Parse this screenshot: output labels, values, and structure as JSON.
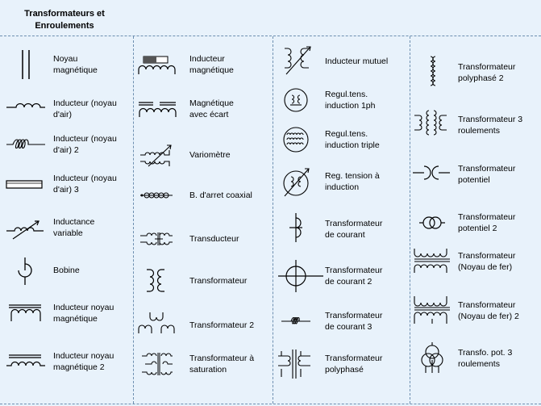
{
  "title": "Transformateurs et\nEnroulements",
  "columns": [
    {
      "items": [
        {
          "label": "Noyau\nmagnétique",
          "icon": "magnetic-core-icon"
        },
        {
          "label": "Inducteur (noyau\nd'air)",
          "icon": "air-core-inductor-icon"
        },
        {
          "label": "Inducteur (noyau\nd'air) 2",
          "icon": "air-core-inductor-2-icon"
        },
        {
          "label": "Inducteur (noyau\nd'air) 3",
          "icon": "air-core-inductor-3-icon"
        },
        {
          "label": "Inductance\nvariable",
          "icon": "variable-inductance-icon"
        },
        {
          "label": "Bobine",
          "icon": "coil-icon"
        },
        {
          "label": "Inducteur noyau\nmagnétique",
          "icon": "magnetic-core-inductor-icon"
        },
        {
          "label": "Inducteur noyau\nmagnétique 2",
          "icon": "magnetic-core-inductor-2-icon"
        }
      ]
    },
    {
      "items": [
        {
          "label": "Inducteur\nmagnétique",
          "icon": "magnetic-inductor-icon"
        },
        {
          "label": "Magnétique\navec écart",
          "icon": "magnetic-gap-icon"
        },
        {
          "label": "Variomètre",
          "icon": "variometer-icon"
        },
        {
          "label": "B. d'arret coaxial",
          "icon": "coaxial-choke-icon"
        },
        {
          "label": "Transducteur",
          "icon": "transducer-icon"
        },
        {
          "label": "Transformateur",
          "icon": "transformer-icon"
        },
        {
          "label": "Transformateur 2",
          "icon": "transformer-2-icon"
        },
        {
          "label": "Transformateur à\nsaturation",
          "icon": "saturable-transformer-icon"
        }
      ]
    },
    {
      "items": [
        {
          "label": "Inducteur mutuel",
          "icon": "mutual-inductor-icon"
        },
        {
          "label": "Regul.tens.\ninduction 1ph",
          "icon": "induction-regulator-1ph-icon"
        },
        {
          "label": "Regul.tens.\ninduction triple",
          "icon": "induction-regulator-triple-icon"
        },
        {
          "label": "Reg. tension à\ninduction",
          "icon": "induction-voltage-regulator-icon"
        },
        {
          "label": "Transformateur\nde courant",
          "icon": "current-transformer-icon"
        },
        {
          "label": "Transformateur\nde courant 2",
          "icon": "current-transformer-2-icon"
        },
        {
          "label": "Transformateur\nde courant 3",
          "icon": "current-transformer-3-icon"
        },
        {
          "label": "Transformateur\npolyphasé",
          "icon": "polyphase-transformer-icon"
        }
      ]
    },
    {
      "items": [
        {
          "label": "Transformateur\npolyphasé 2",
          "icon": "polyphase-transformer-2-icon"
        },
        {
          "label": "Transformateur 3\nroulements",
          "icon": "three-winding-transformer-icon"
        },
        {
          "label": "Transformateur\npotentiel",
          "icon": "potential-transformer-icon"
        },
        {
          "label": "Transformateur\npotentiel 2",
          "icon": "potential-transformer-2-icon"
        },
        {
          "label": "Transformateur\n(Noyau de fer)",
          "icon": "iron-core-transformer-icon"
        },
        {
          "label": "Transformateur\n(Noyau de fer) 2",
          "icon": "iron-core-transformer-2-icon"
        },
        {
          "label": "Transfo. pot. 3\nroulements",
          "icon": "three-winding-potential-transformer-icon"
        }
      ]
    }
  ]
}
